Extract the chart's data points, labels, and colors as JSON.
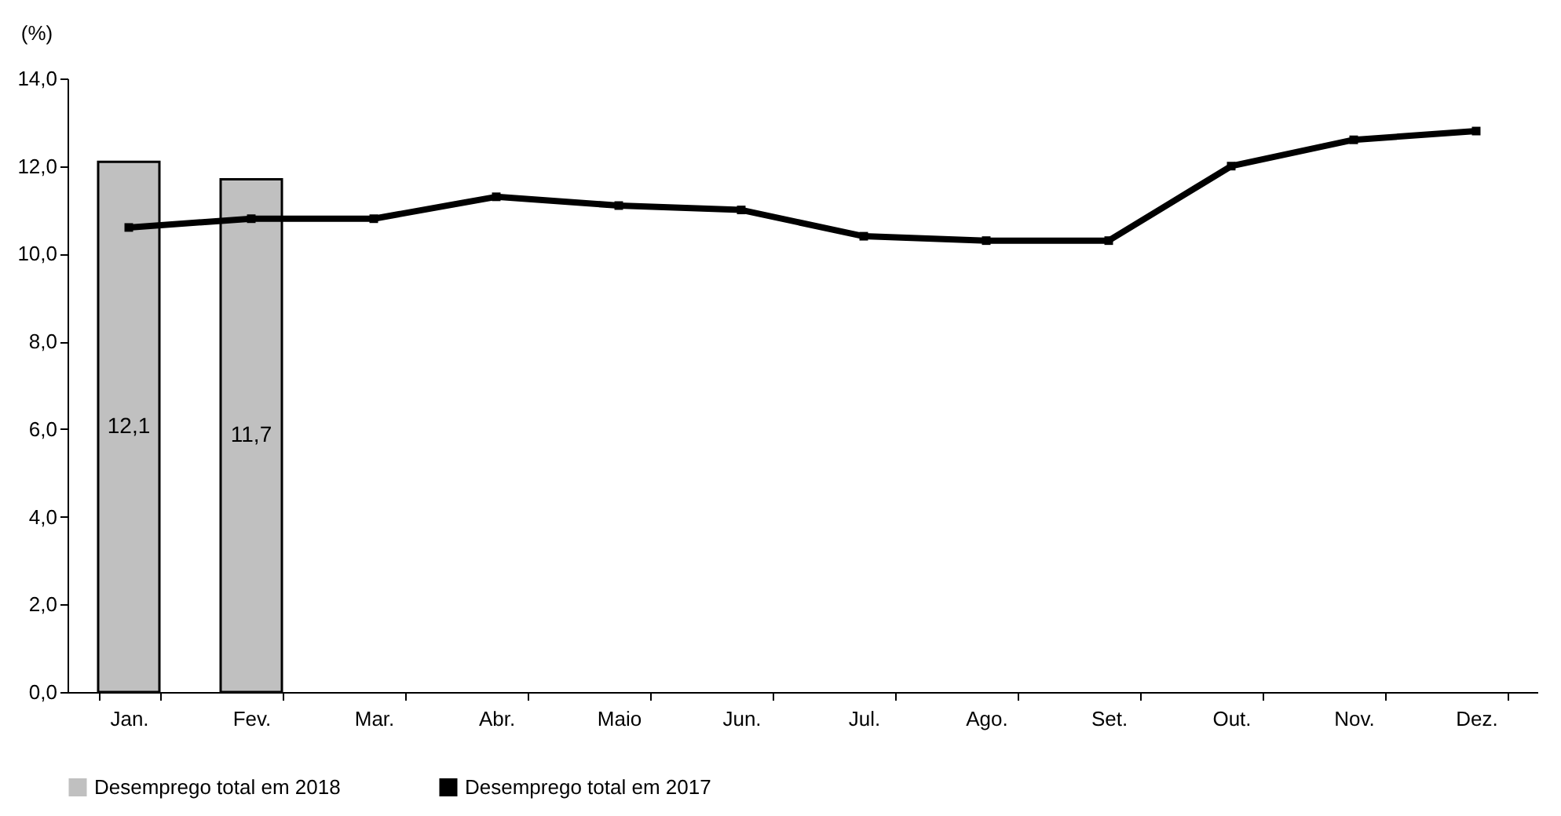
{
  "chart_data": {
    "type": "bar",
    "ylabel": "(%)",
    "categories": [
      "Jan.",
      "Fev.",
      "Mar.",
      "Abr.",
      "Maio",
      "Jun.",
      "Jul.",
      "Ago.",
      "Set.",
      "Out.",
      "Nov.",
      "Dez."
    ],
    "series": [
      {
        "name": "Desemprego total em 2018",
        "color": "#c0c0c0",
        "values": [
          12.1,
          11.7,
          null,
          null,
          null,
          null,
          null,
          null,
          null,
          null,
          null,
          null
        ],
        "value_labels": [
          "12,1",
          "11,7",
          null,
          null,
          null,
          null,
          null,
          null,
          null,
          null,
          null,
          null
        ]
      },
      {
        "name": "Desemprego total em 2017",
        "type": "line",
        "color": "#000000",
        "marker": "square",
        "line_style": "solid",
        "values": [
          10.6,
          10.8,
          10.8,
          11.3,
          11.1,
          11.0,
          10.4,
          10.3,
          10.3,
          12.0,
          12.6,
          12.8
        ]
      }
    ],
    "ylim": [
      0,
      14
    ],
    "yticks": [
      {
        "value": 0,
        "label": "0,0"
      },
      {
        "value": 2,
        "label": "2,0"
      },
      {
        "value": 4,
        "label": "4,0"
      },
      {
        "value": 6,
        "label": "6,0"
      },
      {
        "value": 8,
        "label": "8,0"
      },
      {
        "value": 10,
        "label": "10,0"
      },
      {
        "value": 12,
        "label": "12,0"
      },
      {
        "value": 14,
        "label": "14,0"
      }
    ],
    "grid": false,
    "legend": "bottom"
  }
}
